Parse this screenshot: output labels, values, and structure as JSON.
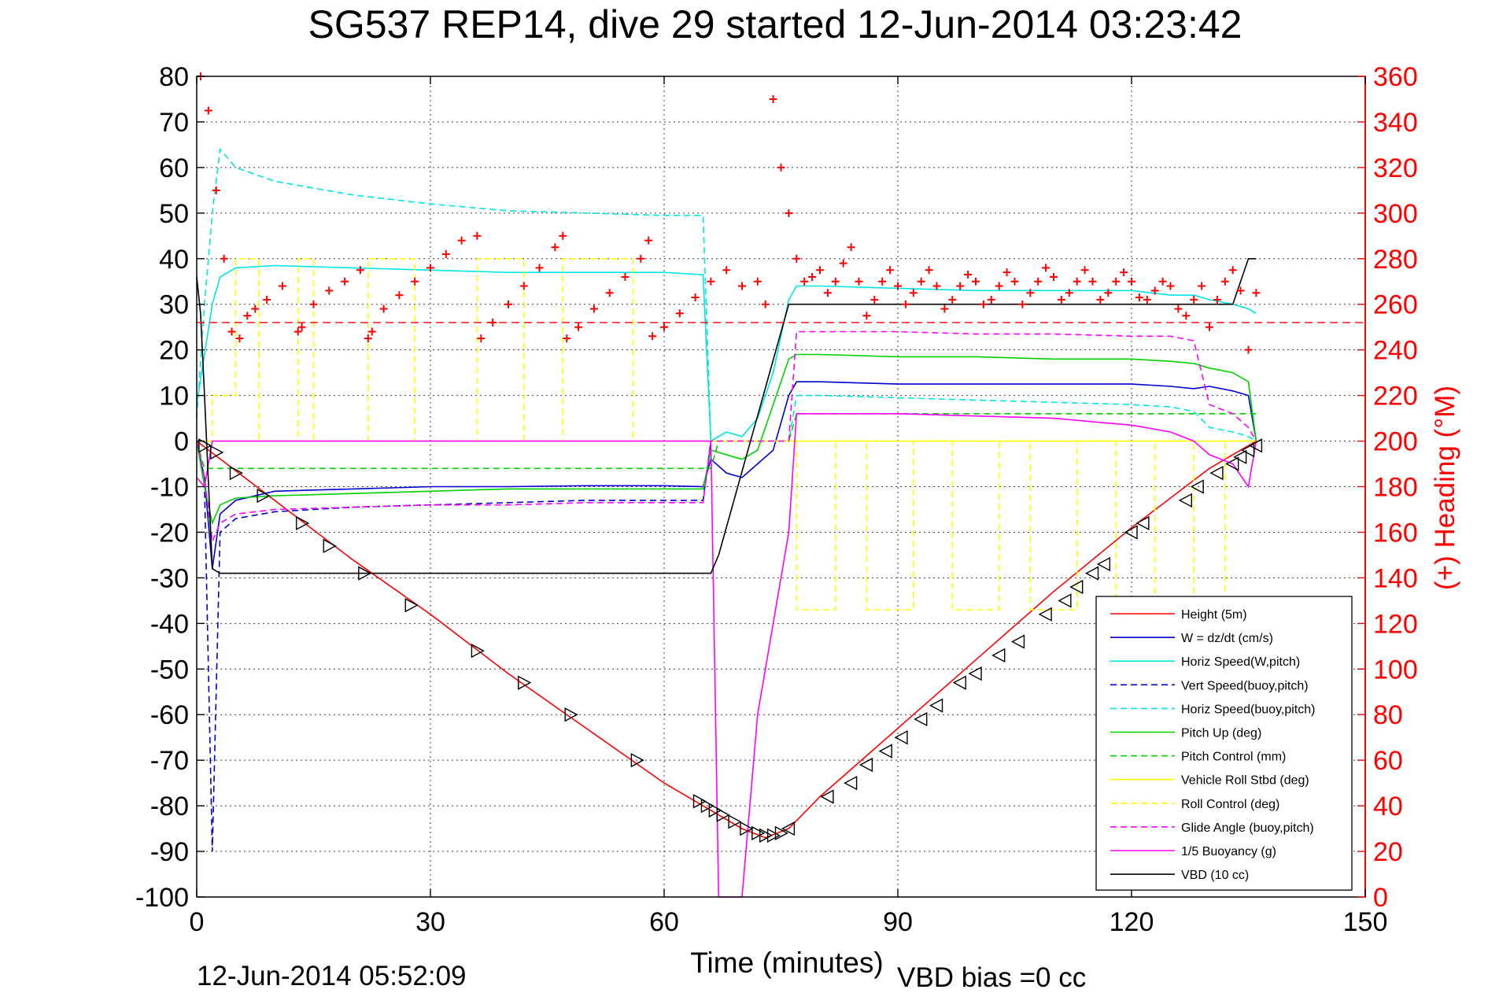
{
  "chart_data": {
    "type": "line",
    "title": "SG537 REP14, dive 29 started 12-Jun-2014 03:23:42",
    "xlabel": "Time (minutes)",
    "ylabel_right": "(+) Heading (°M)",
    "footer_left": "12-Jun-2014 05:52:09",
    "footer_right": "VBD bias =0 cc",
    "xlim": [
      0,
      150
    ],
    "ylim": [
      -100,
      80
    ],
    "ylim_right": [
      0,
      360
    ],
    "xticks": [
      0,
      30,
      60,
      90,
      120,
      150
    ],
    "yticks": [
      80,
      70,
      60,
      50,
      40,
      30,
      20,
      10,
      0,
      -10,
      -20,
      -30,
      -40,
      -50,
      -60,
      -70,
      -80,
      -90,
      -100
    ],
    "yticks_right": [
      360,
      340,
      320,
      300,
      280,
      260,
      240,
      220,
      200,
      180,
      160,
      140,
      120,
      100,
      80,
      60,
      40,
      20,
      0
    ],
    "grid": true,
    "legend_position": "bottom-right",
    "colors": {
      "red": "#ff0000",
      "blue": "#0000cc",
      "cyan": "#00e5e5",
      "green": "#00d000",
      "yellow": "#ffff00",
      "magenta": "#ff00ff",
      "black": "#000000"
    },
    "series": [
      {
        "name": "Height (5m)",
        "color": "#ff0000",
        "dash": false,
        "x": [
          0,
          10,
          20,
          30,
          40,
          50,
          60,
          65,
          70,
          73,
          76,
          80,
          90,
          100,
          110,
          120,
          130,
          136
        ],
        "y": [
          0,
          -13,
          -26,
          -38,
          -51,
          -63,
          -75,
          -80,
          -85,
          -87,
          -85,
          -78,
          -63,
          -48,
          -33,
          -19,
          -6,
          0
        ]
      },
      {
        "name": "W = dz/dt (cm/s)",
        "color": "#0000cc",
        "dash": false,
        "x": [
          0,
          1,
          2,
          3,
          5,
          10,
          20,
          30,
          40,
          50,
          60,
          65,
          66,
          68,
          70,
          72,
          74,
          76,
          77,
          80,
          90,
          100,
          110,
          120,
          125,
          128,
          130,
          133,
          135,
          136
        ],
        "y": [
          0,
          -8,
          -28,
          -16,
          -13,
          -11,
          -10.5,
          -10,
          -10,
          -9.8,
          -9.8,
          -10,
          -4,
          -7,
          -8,
          -5,
          -2,
          10,
          13,
          13,
          12.5,
          12.5,
          12.5,
          12.5,
          12,
          11.5,
          12,
          11,
          10,
          0
        ]
      },
      {
        "name": "Horiz Speed(W,pitch)",
        "color": "#00e5e5",
        "dash": false,
        "x": [
          0,
          2,
          3,
          5,
          10,
          20,
          30,
          40,
          50,
          60,
          65,
          66,
          68,
          70,
          72,
          74,
          76,
          77,
          80,
          90,
          100,
          110,
          120,
          125,
          128,
          130,
          133,
          135,
          136
        ],
        "y": [
          8,
          30,
          36,
          38,
          38.5,
          38,
          37.5,
          37,
          37,
          37,
          36.5,
          0,
          2,
          1,
          5,
          15,
          31,
          34,
          34,
          33.5,
          33,
          33,
          33,
          32,
          32,
          31,
          30,
          29,
          28
        ]
      },
      {
        "name": "Vert Speed(buoy,pitch)",
        "color": "#0000cc",
        "dash": true,
        "x": [
          0,
          1,
          2,
          3,
          5,
          10,
          20,
          30,
          40,
          50,
          60,
          65,
          66
        ],
        "y": [
          0,
          -10,
          -90,
          -20,
          -17,
          -15.5,
          -14.5,
          -14,
          -13.5,
          -13,
          -13,
          -13,
          0
        ]
      },
      {
        "name": "Horiz Speed(buoy,pitch)",
        "color": "#00e5e5",
        "dash": true,
        "x": [
          0,
          1,
          2,
          3,
          5,
          10,
          20,
          30,
          40,
          50,
          60,
          65,
          66,
          76,
          77,
          80,
          90,
          100,
          110,
          120,
          125,
          128,
          130,
          133,
          135,
          136
        ],
        "y": [
          5,
          30,
          50,
          64,
          60,
          57,
          54,
          52,
          50.5,
          50,
          49.5,
          49.5,
          0,
          0,
          10,
          10,
          9.5,
          9,
          8.5,
          8,
          7.5,
          6.5,
          3,
          2,
          1,
          0
        ]
      },
      {
        "name": "Pitch Up (deg)",
        "color": "#00d000",
        "dash": false,
        "x": [
          0,
          1,
          2,
          3,
          5,
          10,
          20,
          30,
          40,
          50,
          60,
          65,
          66,
          70,
          72,
          74,
          76,
          77,
          80,
          90,
          100,
          110,
          120,
          125,
          128,
          130,
          133,
          135,
          136
        ],
        "y": [
          0,
          -10,
          -18,
          -14,
          -12.5,
          -12,
          -11.5,
          -11,
          -10.5,
          -10.5,
          -10.5,
          -10.5,
          -2,
          -4,
          -2,
          8,
          18,
          19,
          19,
          18.5,
          18.5,
          18,
          18,
          17.5,
          17,
          16,
          15,
          13,
          0
        ]
      },
      {
        "name": "Pitch Control (mm)",
        "color": "#00d000",
        "dash": true,
        "x": [
          0,
          1,
          2,
          66,
          67,
          76,
          77,
          136
        ],
        "y": [
          0,
          -6,
          -6,
          -6,
          0,
          0,
          6,
          6
        ]
      },
      {
        "name": "Vehicle Roll Stbd (deg)",
        "color": "#ffff00",
        "dash": false,
        "x": [
          0,
          3,
          66,
          67,
          136
        ],
        "y": [
          0,
          0,
          0,
          0,
          0
        ]
      },
      {
        "name": "Roll Control (deg)",
        "color": "#ffff00",
        "dash": true,
        "x": [
          0,
          2,
          2,
          5,
          5,
          8,
          8,
          13,
          13,
          15,
          15,
          22,
          22,
          28,
          28,
          36,
          36,
          42,
          42,
          47,
          47,
          56,
          56,
          66,
          66,
          77,
          77,
          82,
          82,
          86,
          86,
          92,
          92,
          97,
          97,
          103,
          103,
          107,
          107,
          113,
          113,
          118,
          118,
          123,
          123,
          128,
          128,
          132,
          132,
          136
        ],
        "y": [
          0,
          0,
          10,
          10,
          40,
          40,
          0,
          0,
          40,
          40,
          0,
          0,
          40,
          40,
          0,
          0,
          40,
          40,
          0,
          0,
          40,
          40,
          0,
          0,
          0,
          0,
          -37,
          -37,
          0,
          0,
          -37,
          -37,
          0,
          0,
          -37,
          -37,
          0,
          0,
          -37,
          -37,
          0,
          0,
          -37,
          -37,
          0,
          0,
          -37,
          -37,
          0,
          0
        ]
      },
      {
        "name": "Glide Angle (buoy,pitch)",
        "color": "#ff00ff",
        "dash": true,
        "x": [
          0,
          1,
          2,
          3,
          5,
          10,
          20,
          30,
          40,
          50,
          60,
          65,
          66,
          76,
          77,
          80,
          90,
          100,
          110,
          120,
          125,
          128,
          130,
          133,
          135,
          136
        ],
        "y": [
          0,
          -8,
          -22,
          -18,
          -16,
          -15,
          -14.5,
          -14,
          -14,
          -13.5,
          -13.5,
          -13.5,
          0,
          0,
          24,
          24,
          24,
          23.5,
          23.5,
          23,
          23,
          22,
          8,
          6,
          3,
          0
        ]
      },
      {
        "name": "1/5 Buoyancy (g)",
        "color": "#ff00ff",
        "dash": false,
        "x": [
          0,
          1,
          2,
          66,
          67,
          68,
          70,
          72,
          74,
          76,
          77,
          80,
          90,
          100,
          110,
          120,
          125,
          128,
          130,
          133,
          135,
          136
        ],
        "y": [
          -8,
          -10,
          0,
          0,
          -100,
          -100,
          -100,
          -60,
          -40,
          -20,
          6,
          6,
          6,
          5.5,
          5,
          3.5,
          2,
          0,
          -3,
          -5,
          -10,
          0
        ]
      },
      {
        "name": "VBD (10 cc)",
        "color": "#000000",
        "dash": false,
        "x": [
          0,
          0.5,
          1,
          2,
          3,
          4,
          66,
          67,
          76,
          77,
          130,
          133,
          134,
          135,
          136
        ],
        "y": [
          36,
          28,
          10,
          -28,
          -29,
          -29,
          -29,
          -25,
          30,
          30,
          30,
          30,
          35,
          40,
          40
        ]
      }
    ],
    "heading_series": {
      "name": "(+) Heading",
      "marker": "+",
      "color": "#ff0000",
      "axis": "right",
      "x": [
        0.5,
        1.5,
        2.5,
        3.5,
        4.5,
        5.5,
        6.5,
        7.5,
        9,
        11,
        13,
        13.5,
        15,
        17,
        19,
        21,
        22,
        22.5,
        24,
        26,
        28,
        30,
        32,
        34,
        36,
        36.5,
        38,
        40,
        42,
        44,
        46,
        47,
        47.5,
        49,
        51,
        53,
        55,
        57,
        58,
        58.5,
        60,
        62,
        64,
        66,
        68,
        70,
        72,
        73,
        74,
        75,
        76,
        77,
        78,
        79,
        80,
        81,
        82,
        83,
        84,
        85,
        86,
        87,
        88,
        89,
        90,
        91,
        92,
        93,
        94,
        95,
        96,
        97,
        98,
        99,
        100,
        101,
        102,
        103,
        104,
        105,
        106,
        107,
        108,
        109,
        110,
        111,
        112,
        113,
        114,
        115,
        116,
        117,
        118,
        119,
        120,
        121,
        122,
        123,
        124,
        125,
        126,
        127,
        128,
        129,
        130,
        131,
        132,
        133,
        134,
        135,
        136
      ],
      "y": [
        360,
        345,
        310,
        280,
        248,
        245,
        255,
        258,
        262,
        268,
        248,
        250,
        260,
        266,
        270,
        275,
        245,
        248,
        258,
        264,
        270,
        276,
        282,
        288,
        290,
        245,
        252,
        260,
        268,
        276,
        285,
        290,
        245,
        250,
        258,
        265,
        272,
        280,
        288,
        246,
        250,
        256,
        263,
        270,
        275,
        268,
        270,
        260,
        350,
        320,
        300,
        280,
        270,
        272,
        275,
        265,
        270,
        278,
        285,
        270,
        255,
        262,
        270,
        275,
        268,
        260,
        265,
        270,
        275,
        268,
        258,
        262,
        268,
        273,
        270,
        260,
        262,
        268,
        274,
        270,
        260,
        265,
        270,
        276,
        272,
        262,
        265,
        270,
        275,
        270,
        262,
        265,
        270,
        274,
        270,
        263,
        262,
        266,
        270,
        268,
        258,
        255,
        262,
        268,
        250,
        262,
        270,
        275,
        266,
        240,
        265
      ]
    },
    "marker_series": {
      "name": "triangle markers",
      "marker": "triangle",
      "color": "#000000",
      "x": [
        1,
        2.5,
        5,
        8.5,
        13.5,
        17,
        21.5,
        27.5,
        36,
        42,
        48,
        56.5,
        64.5,
        65.5,
        66.5,
        67.5,
        69,
        70.5,
        72,
        73,
        74,
        75,
        76,
        81,
        84,
        86,
        88.5,
        90.5,
        93,
        95,
        98,
        100,
        103,
        105.5,
        109,
        111.5,
        113,
        115,
        116.5,
        120,
        121.5,
        127,
        128.5,
        131,
        133,
        134,
        135,
        136
      ],
      "y": [
        -1,
        -2.5,
        -7,
        -12,
        -18,
        -23,
        -29,
        -36,
        -46,
        -53,
        -60,
        -70,
        -79,
        -80,
        -81,
        -82,
        -83.5,
        -85,
        -86,
        -86.5,
        -86.5,
        -86,
        -85,
        -78,
        -75,
        -71,
        -68,
        -65,
        -61,
        -58,
        -53,
        -51,
        -47,
        -44,
        -38,
        -35,
        -32,
        -29,
        -27,
        -20,
        -18,
        -13,
        -10,
        -7,
        -5,
        -3.5,
        -2,
        -1
      ]
    },
    "dashed_reference": {
      "name": "",
      "color": "#ff0000",
      "axis": "right",
      "value": 252
    }
  }
}
